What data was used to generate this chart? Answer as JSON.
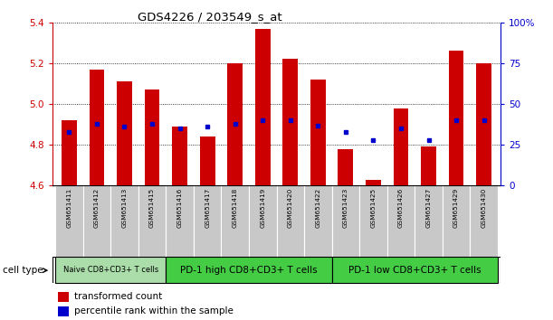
{
  "title": "GDS4226 / 203549_s_at",
  "samples": [
    "GSM651411",
    "GSM651412",
    "GSM651413",
    "GSM651415",
    "GSM651416",
    "GSM651417",
    "GSM651418",
    "GSM651419",
    "GSM651420",
    "GSM651422",
    "GSM651423",
    "GSM651425",
    "GSM651426",
    "GSM651427",
    "GSM651429",
    "GSM651430"
  ],
  "transformed_count": [
    4.92,
    5.17,
    5.11,
    5.07,
    4.89,
    4.84,
    5.2,
    5.37,
    5.22,
    5.12,
    4.78,
    4.63,
    4.98,
    4.79,
    5.26,
    5.2
  ],
  "percentile_rank": [
    33,
    38,
    36,
    38,
    35,
    36,
    38,
    40,
    40,
    37,
    33,
    28,
    35,
    28,
    40,
    40
  ],
  "ylim_left": [
    4.6,
    5.4
  ],
  "ylim_right": [
    0,
    100
  ],
  "yticks_left": [
    4.6,
    4.8,
    5.0,
    5.2,
    5.4
  ],
  "yticks_right": [
    0,
    25,
    50,
    75,
    100
  ],
  "ytick_labels_right": [
    "0",
    "25",
    "50",
    "75",
    "100%"
  ],
  "bar_color": "#cc0000",
  "dot_color": "#0000cc",
  "bar_base": 4.6,
  "cell_groups": [
    {
      "label": "Naive CD8+CD3+ T cells",
      "start": 0,
      "end": 3,
      "color": "#aaddaa"
    },
    {
      "label": "PD-1 high CD8+CD3+ T cells",
      "start": 4,
      "end": 9,
      "color": "#44cc44"
    },
    {
      "label": "PD-1 low CD8+CD3+ T cells",
      "start": 10,
      "end": 15,
      "color": "#44cc44"
    }
  ],
  "grid_color": "black",
  "axis_left_color": "#cc0000",
  "axis_right_color": "#0000cc",
  "cell_type_label": "cell type",
  "legend_items": [
    "transformed count",
    "percentile rank within the sample"
  ],
  "sample_bg_color": "#c8c8c8",
  "bar_width": 0.55
}
